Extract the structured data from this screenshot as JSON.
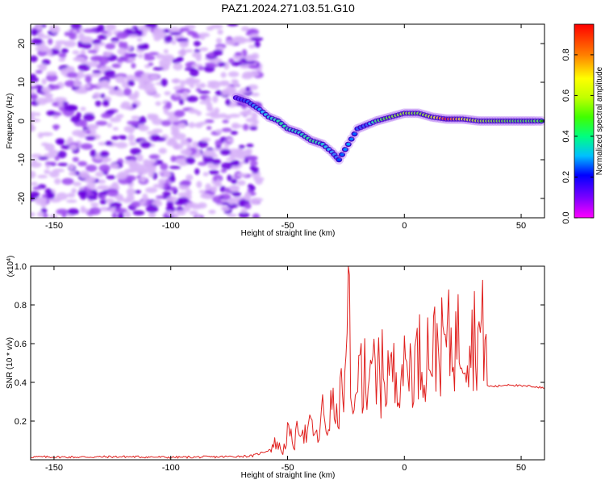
{
  "title": "PAZ1.2024.271.03.51.G10",
  "colors": {
    "snr_line": "#e0201e",
    "spectrogram_low": "#c98cf0",
    "spectrogram_mid": "#6a00e0",
    "axes": "#000000"
  },
  "chart_data": [
    {
      "type": "heatmap",
      "title": "PAZ1.2024.271.03.51.G10",
      "xlabel": "Height of straight line (km)",
      "ylabel": "Frequency (Hz)",
      "xlim": [
        -160,
        60
      ],
      "ylim": [
        -25,
        25
      ],
      "x_ticks": [
        -150,
        -100,
        -50,
        0,
        50
      ],
      "y_ticks": [
        -20,
        -10,
        0,
        10,
        20
      ],
      "colorbar": {
        "label": "Normalized spectral amplitude",
        "range": [
          0,
          0.95
        ],
        "ticks": [
          0.0,
          0.2,
          0.4,
          0.6,
          0.8
        ],
        "colormap": [
          "#ff00ff",
          "#8000ff",
          "#0000ff",
          "#00c0ff",
          "#00ff80",
          "#40ff00",
          "#c0ff00",
          "#ffff00",
          "#ff8000",
          "#ff0000"
        ]
      },
      "ridge": [
        {
          "x": -72,
          "y": 6,
          "amp": 0.15
        },
        {
          "x": -67,
          "y": 5,
          "amp": 0.25
        },
        {
          "x": -62,
          "y": 3,
          "amp": 0.3
        },
        {
          "x": -58,
          "y": 1,
          "amp": 0.35
        },
        {
          "x": -54,
          "y": 0,
          "amp": 0.4
        },
        {
          "x": -50,
          "y": -2,
          "amp": 0.4
        },
        {
          "x": -45,
          "y": -3,
          "amp": 0.35
        },
        {
          "x": -40,
          "y": -5,
          "amp": 0.45
        },
        {
          "x": -35,
          "y": -6,
          "amp": 0.35
        },
        {
          "x": -31,
          "y": -8,
          "amp": 0.3
        },
        {
          "x": -28,
          "y": -10,
          "amp": 0.25
        },
        {
          "x": -24,
          "y": -6,
          "amp": 0.3
        },
        {
          "x": -20,
          "y": -2,
          "amp": 0.25
        },
        {
          "x": -16,
          "y": -1,
          "amp": 0.25
        },
        {
          "x": -12,
          "y": 0,
          "amp": 0.45
        },
        {
          "x": -6,
          "y": 1,
          "amp": 0.55
        },
        {
          "x": 0,
          "y": 2,
          "amp": 0.6
        },
        {
          "x": 6,
          "y": 2,
          "amp": 0.55
        },
        {
          "x": 12,
          "y": 1,
          "amp": 0.65
        },
        {
          "x": 18,
          "y": 0.5,
          "amp": 0.95
        },
        {
          "x": 25,
          "y": 0.5,
          "amp": 0.7
        },
        {
          "x": 32,
          "y": 0,
          "amp": 0.6
        },
        {
          "x": 40,
          "y": 0,
          "amp": 0.55
        },
        {
          "x": 48,
          "y": 0,
          "amp": 0.5
        },
        {
          "x": 56,
          "y": 0,
          "amp": 0.5
        },
        {
          "x": 60,
          "y": 0,
          "amp": 0.5
        }
      ],
      "noise_region": {
        "x_start": -160,
        "x_end": -62,
        "amp_range": [
          0,
          0.2
        ]
      }
    },
    {
      "type": "line",
      "title": "",
      "xlabel": "Height of straight line (km)",
      "ylabel": "SNR (10 * v/v)",
      "y_scale_label": "(x10^4)",
      "xlim": [
        -160,
        60
      ],
      "ylim": [
        0,
        1.0
      ],
      "x_ticks": [
        -150,
        -100,
        -50,
        0,
        50
      ],
      "y_ticks": [
        0.2,
        0.4,
        0.6,
        0.8,
        1.0
      ],
      "series": [
        {
          "x": [
            -160,
            -140,
            -120,
            -100,
            -80,
            -65,
            -58,
            -55,
            -52,
            -50,
            -47,
            -45,
            -42,
            -40,
            -37,
            -35,
            -33,
            -31,
            -29,
            -27,
            -25,
            -24,
            -23,
            -22,
            -21,
            -20,
            -19,
            -18,
            -17,
            -16,
            -15,
            -14,
            -13,
            -12,
            -11,
            -10,
            -9,
            -8,
            -7,
            -6,
            -5,
            -4,
            -3,
            -2,
            -1,
            0,
            2,
            4,
            6,
            8,
            10,
            12,
            14,
            16,
            18,
            20,
            22,
            24,
            26,
            28,
            30,
            32,
            34,
            35,
            35.5,
            40,
            45,
            50,
            55,
            60
          ],
          "values": [
            0.015,
            0.014,
            0.016,
            0.013,
            0.015,
            0.02,
            0.05,
            0.09,
            0.04,
            0.14,
            0.08,
            0.2,
            0.12,
            0.18,
            0.1,
            0.25,
            0.15,
            0.3,
            0.2,
            0.35,
            0.4,
            1.0,
            0.32,
            0.2,
            0.5,
            0.25,
            0.65,
            0.3,
            0.7,
            0.28,
            0.55,
            0.35,
            0.52,
            0.3,
            0.5,
            0.38,
            0.55,
            0.35,
            0.5,
            0.42,
            0.48,
            0.4,
            0.5,
            0.45,
            0.52,
            0.45,
            0.5,
            0.48,
            0.55,
            0.5,
            0.58,
            0.55,
            0.6,
            0.58,
            0.62,
            0.6,
            0.62,
            0.63,
            0.64,
            0.63,
            0.65,
            0.64,
            0.66,
            0.65,
            0.38,
            0.38,
            0.39,
            0.38,
            0.38,
            0.37
          ]
        }
      ]
    }
  ]
}
